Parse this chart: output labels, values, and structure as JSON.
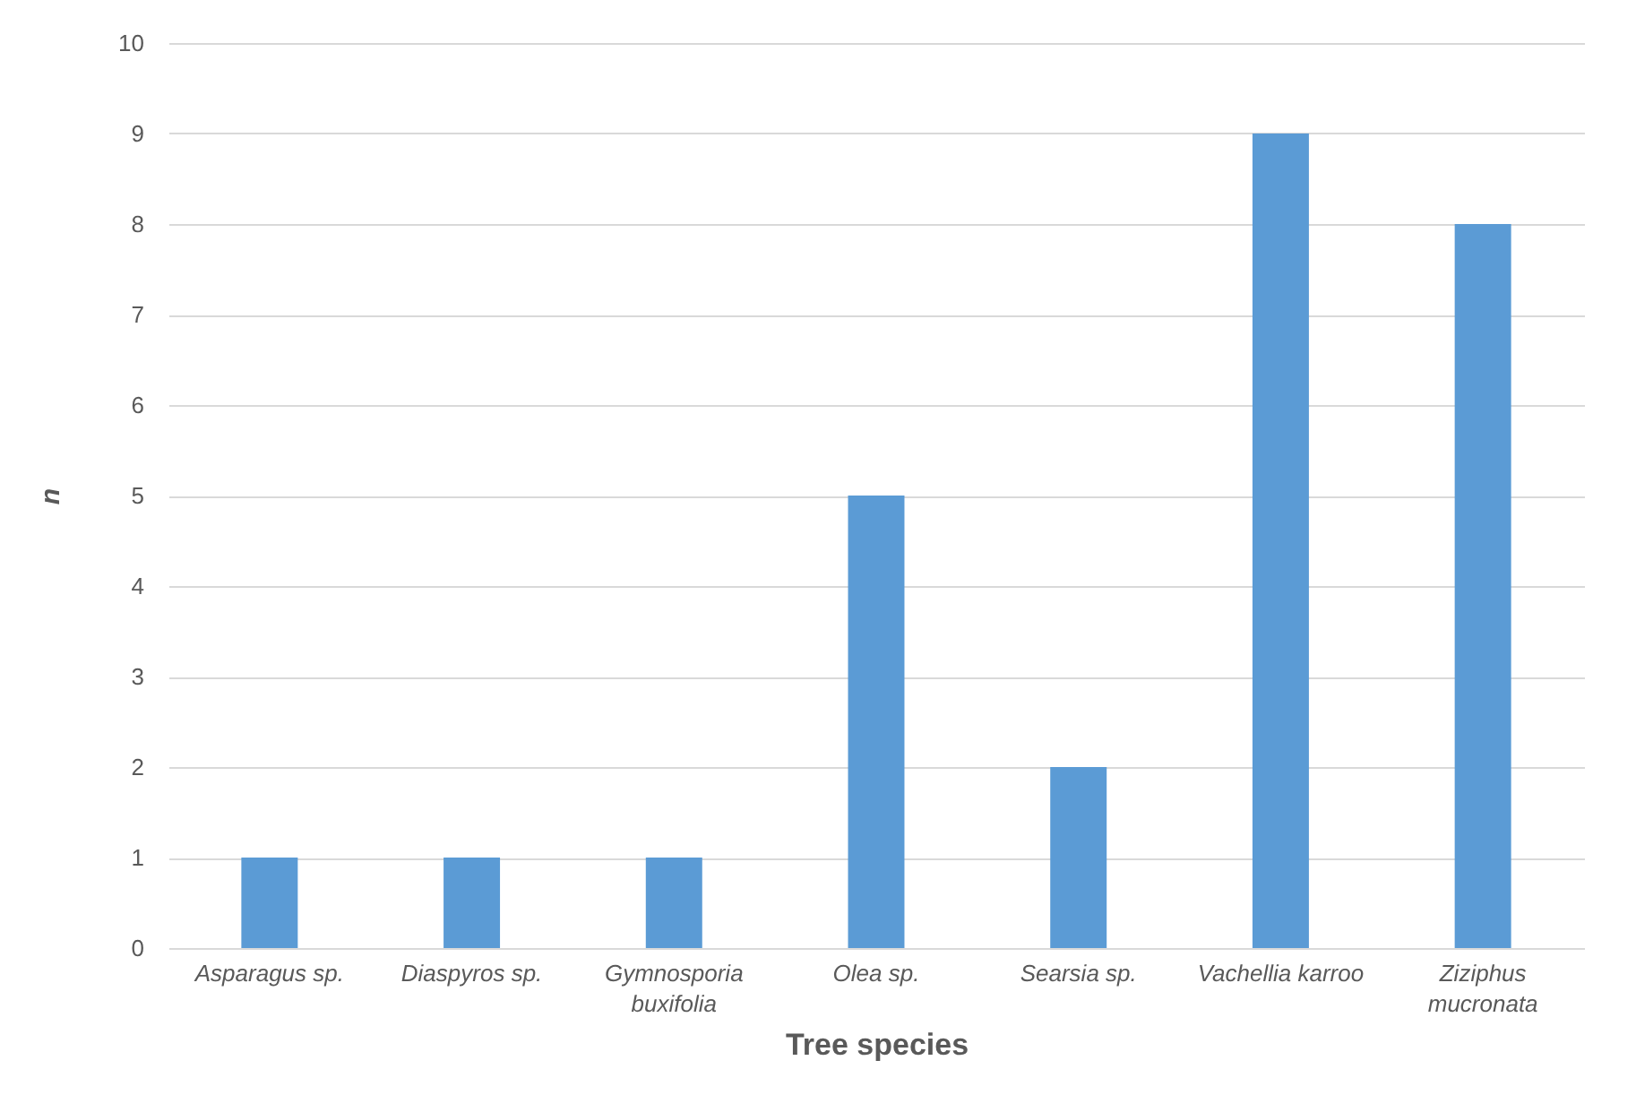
{
  "chart_data": {
    "type": "bar",
    "xlabel": "Tree species",
    "ylabel": "n",
    "categories": [
      "Asparagus sp.",
      "Diaspyros sp.",
      "Gymnosporia buxifolia",
      "Olea sp.",
      "Searsia sp.",
      "Vachellia karroo",
      "Ziziphus mucronata"
    ],
    "values": [
      1,
      1,
      1,
      5,
      2,
      9,
      8
    ],
    "color": "#5b9bd5",
    "ylim": [
      0,
      10
    ],
    "yticks": [
      0,
      1,
      2,
      3,
      4,
      5,
      6,
      7,
      8,
      9,
      10
    ],
    "grid": "y"
  }
}
